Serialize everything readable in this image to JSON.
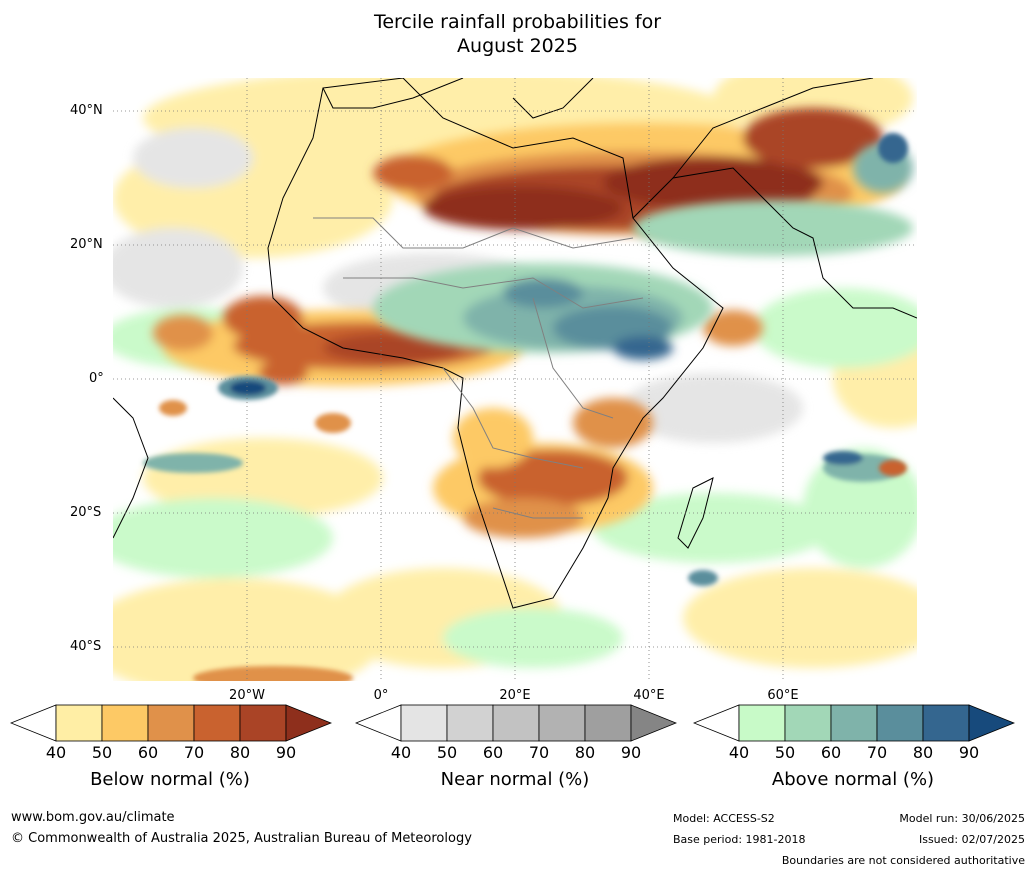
{
  "title_line1": "Tercile rainfall probabilities for",
  "title_line2": "August 2025",
  "map": {
    "lat_labels": [
      "40°N",
      "20°N",
      "0°",
      "20°S",
      "40°S"
    ],
    "lon_labels": [
      "20°W",
      "0°",
      "20°E",
      "40°E",
      "60°E"
    ],
    "gridlines": true
  },
  "colorbars": [
    {
      "label": "Below normal (%)",
      "ticks": [
        "40",
        "50",
        "60",
        "70",
        "80",
        "90"
      ],
      "colors": [
        "#ffeea5",
        "#fdc965",
        "#e0914a",
        "#c9622f",
        "#aa4426",
        "#8e2f1c"
      ]
    },
    {
      "label": "Near normal (%)",
      "ticks": [
        "40",
        "50",
        "60",
        "70",
        "80",
        "90"
      ],
      "colors": [
        "#e4e4e4",
        "#d2d2d2",
        "#c2c2c2",
        "#b2b2b2",
        "#9f9f9f",
        "#858585"
      ]
    },
    {
      "label": "Above normal (%)",
      "ticks": [
        "40",
        "50",
        "60",
        "70",
        "80",
        "90"
      ],
      "colors": [
        "#c8fac8",
        "#a2d7b7",
        "#7fb3aa",
        "#5a8e9c",
        "#34668f",
        "#174a7c"
      ]
    }
  ],
  "footer": {
    "url": "www.bom.gov.au/climate",
    "copyright": "© Commonwealth of Australia 2025, Australian Bureau of Meteorology",
    "model": "Model: ACCESS-S2",
    "base_period": "Base period: 1981-2018",
    "model_run": "Model run: 30/06/2025",
    "issued": "Issued: 02/07/2025",
    "disclaimer": "Boundaries are not considered authoritative"
  }
}
